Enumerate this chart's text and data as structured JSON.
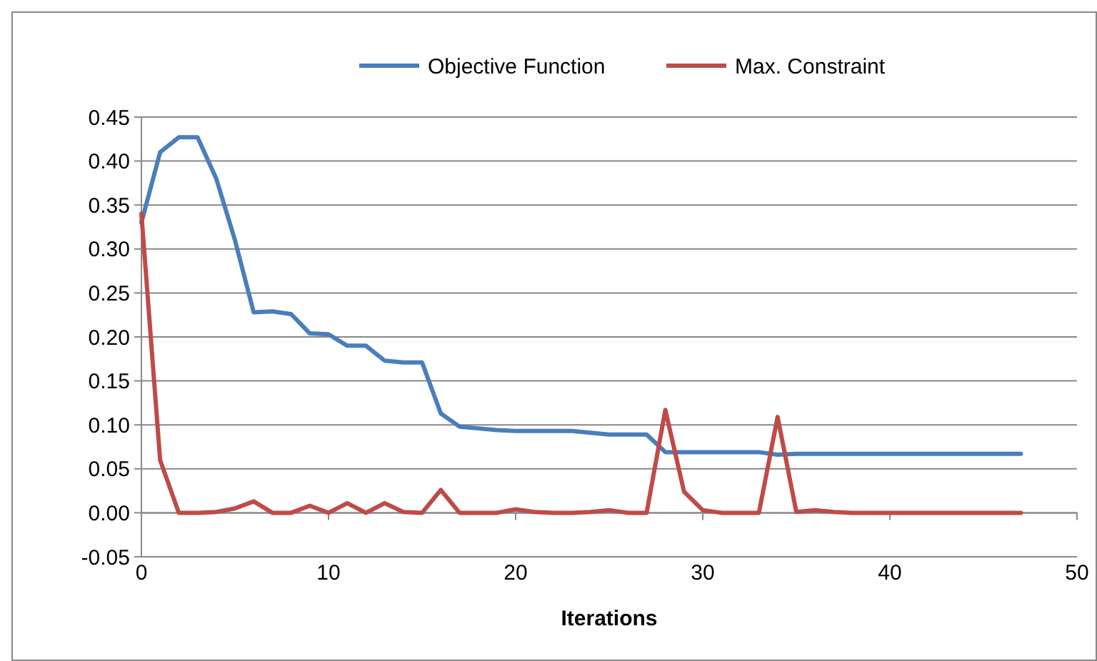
{
  "chart_data": {
    "type": "line",
    "xlabel": "Iterations",
    "x": [
      0,
      1,
      2,
      3,
      4,
      5,
      6,
      7,
      8,
      9,
      10,
      11,
      12,
      13,
      14,
      15,
      16,
      17,
      18,
      19,
      20,
      21,
      22,
      23,
      24,
      25,
      26,
      27,
      28,
      29,
      30,
      31,
      32,
      33,
      34,
      35,
      36,
      37,
      38,
      39,
      40,
      41,
      42,
      43,
      44,
      45,
      46,
      47
    ],
    "series": [
      {
        "name": "Objective Function",
        "color": "#4a7ebb",
        "values": [
          0.33,
          0.41,
          0.427,
          0.427,
          0.38,
          0.31,
          0.228,
          0.229,
          0.226,
          0.204,
          0.203,
          0.19,
          0.19,
          0.173,
          0.171,
          0.171,
          0.113,
          0.098,
          0.096,
          0.094,
          0.093,
          0.093,
          0.093,
          0.093,
          0.091,
          0.089,
          0.089,
          0.089,
          0.069,
          0.069,
          0.069,
          0.069,
          0.069,
          0.069,
          0.066,
          0.067,
          0.067,
          0.067,
          0.067,
          0.067,
          0.067,
          0.067,
          0.067,
          0.067,
          0.067,
          0.067,
          0.067,
          0.067
        ]
      },
      {
        "name": "Max. Constraint",
        "color": "#be4b48",
        "values": [
          0.34,
          0.06,
          0,
          0,
          0.001,
          0.005,
          0.013,
          0,
          0,
          0.008,
          0,
          0.011,
          0,
          0.011,
          0.001,
          0,
          0.026,
          0,
          0,
          0,
          0.004,
          0.001,
          0,
          0,
          0.001,
          0.003,
          0,
          0,
          0.117,
          0.024,
          0.003,
          0,
          0,
          0,
          0.109,
          0.001,
          0.003,
          0.001,
          0,
          0,
          0,
          0,
          0,
          0,
          0,
          0,
          0,
          0
        ]
      }
    ],
    "xlim": [
      0,
      50
    ],
    "xticks": [
      0,
      10,
      20,
      30,
      40,
      50
    ],
    "ylim": [
      -0.05,
      0.45
    ],
    "yticks": [
      {
        "value": -0.05,
        "label": "-0.05"
      },
      {
        "value": 0,
        "label": "0.00"
      },
      {
        "value": 0.05,
        "label": "0.05"
      },
      {
        "value": 0.1,
        "label": "0.10"
      },
      {
        "value": 0.15,
        "label": "0.15"
      },
      {
        "value": 0.2,
        "label": "0.20"
      },
      {
        "value": 0.25,
        "label": "0.25"
      },
      {
        "value": 0.3,
        "label": "0.30"
      },
      {
        "value": 0.35,
        "label": "0.35"
      },
      {
        "value": 0.4,
        "label": "0.40"
      },
      {
        "value": 0.45,
        "label": "0.45"
      }
    ],
    "grid": "y",
    "legend": "top",
    "marker": "none",
    "line_style": "solid"
  }
}
